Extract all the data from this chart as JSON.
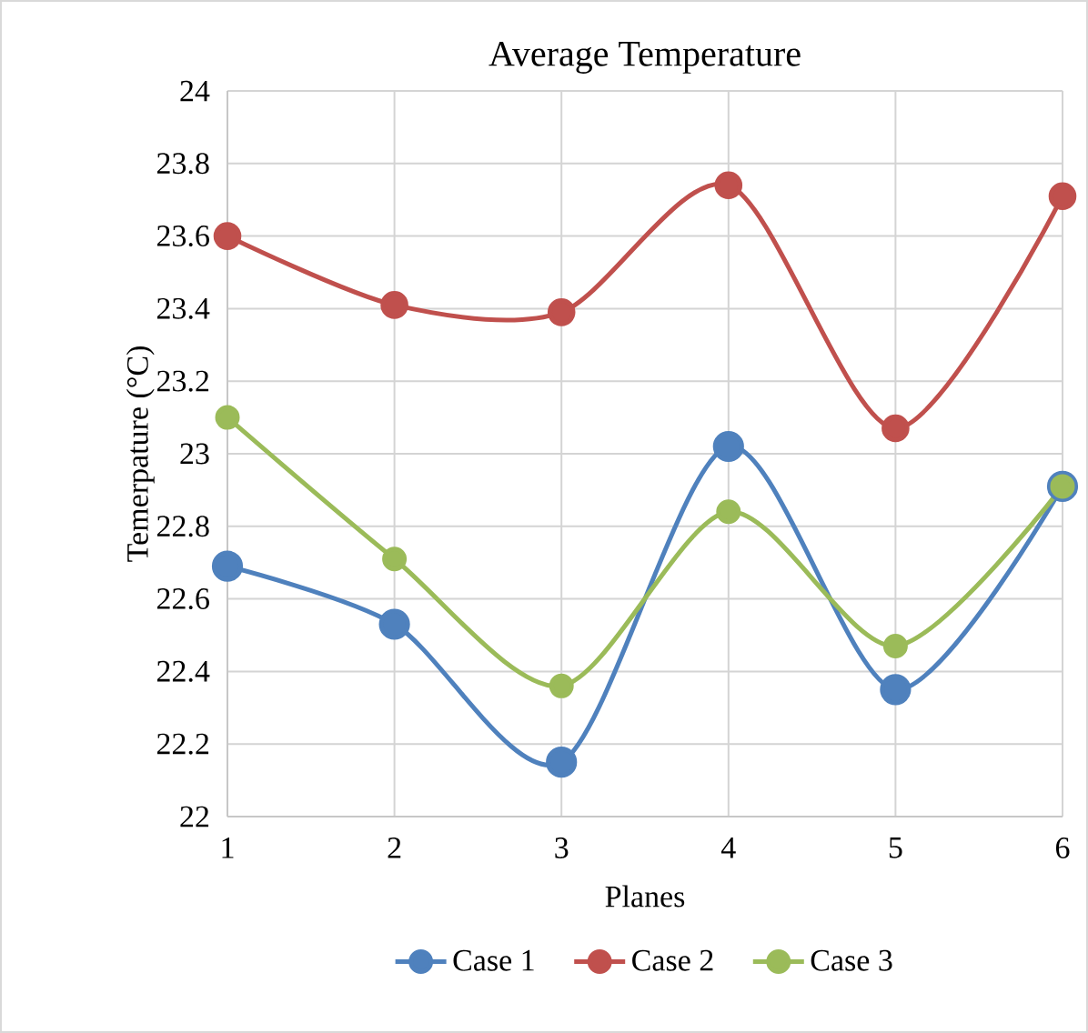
{
  "chart_data": {
    "type": "line",
    "title": "Average Temperature",
    "xlabel": "Planes",
    "ylabel": "Temerpature (°C)",
    "x": [
      1,
      2,
      3,
      4,
      5,
      6
    ],
    "series": [
      {
        "name": "Case 1",
        "color": "#4f81bd",
        "values": [
          22.69,
          22.53,
          22.15,
          23.02,
          22.35,
          22.91
        ]
      },
      {
        "name": "Case 2",
        "color": "#c0504d",
        "values": [
          23.6,
          23.41,
          23.39,
          23.74,
          23.07,
          23.71
        ]
      },
      {
        "name": "Case 3",
        "color": "#9bbb59",
        "values": [
          23.1,
          22.71,
          22.36,
          22.84,
          22.47,
          22.91
        ]
      }
    ],
    "xlim": [
      1,
      6
    ],
    "xticks": [
      1,
      2,
      3,
      4,
      5,
      6
    ],
    "ylim": [
      22,
      24
    ],
    "yticks": [
      22,
      22.2,
      22.4,
      22.6,
      22.8,
      23,
      23.2,
      23.4,
      23.6,
      23.8,
      24
    ],
    "grid": true,
    "legend": "bottom",
    "marker": "circle",
    "line_style": "solid"
  }
}
